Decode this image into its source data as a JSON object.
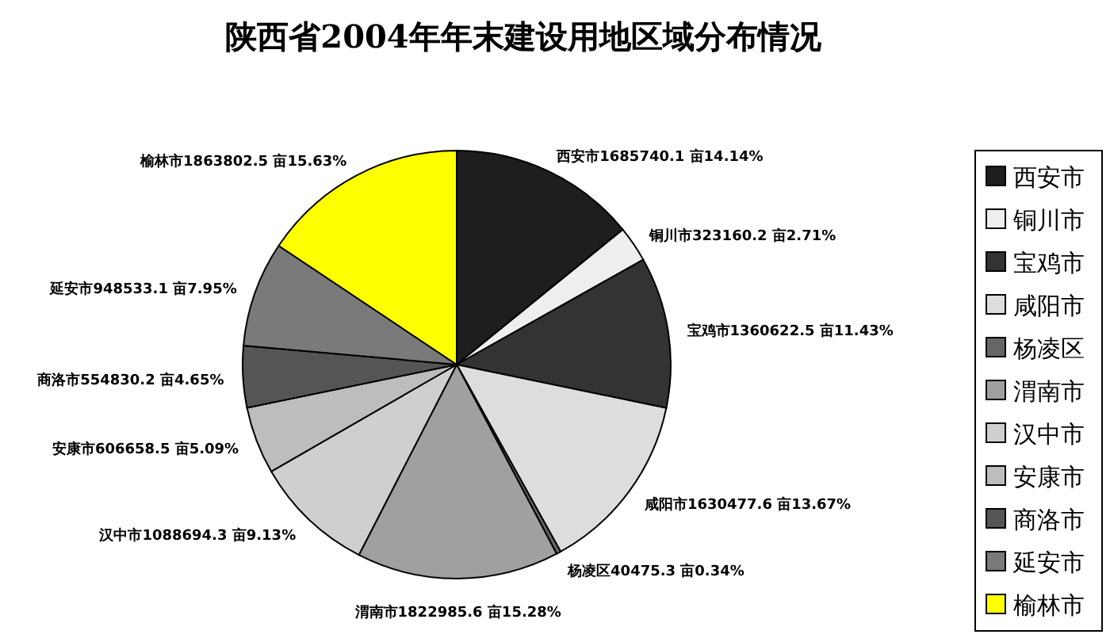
{
  "chart_data": {
    "type": "pie",
    "title": "陕西省2004年年末建设用地区域分布情况",
    "categories": [
      "西安市",
      "铜川市",
      "宝鸡市",
      "咸阳市",
      "杨凌区",
      "渭南市",
      "汉中市",
      "安康市",
      "商洛市",
      "延安市",
      "榆林市"
    ],
    "values": [
      1685740.1,
      323160.2,
      1360622.5,
      1630477.6,
      40475.3,
      1822985.6,
      1088694.3,
      606658.5,
      554830.2,
      948533.1,
      1863802.5
    ],
    "value_labels": [
      "西安市1685740.1 亩14.14%",
      "铜川市323160.2 亩2.71%",
      "宝鸡市1360622.5 亩11.43%",
      "咸阳市1630477.6 亩13.67%",
      "杨凌区40475.3 亩0.34%",
      "渭南市1822985.6 亩15.28%",
      "汉中市1088694.3 亩9.13%",
      "安康市606658.5 亩5.09%",
      "商洛市554830.2 亩4.65%",
      "延安市948533.1 亩7.95%",
      "榆林市1863802.5 亩15.63%"
    ],
    "colors": [
      "#1e1e1e",
      "#eeeeee",
      "#333333",
      "#dddddd",
      "#666666",
      "#a0a0a0",
      "#cfcfcf",
      "#bdbdbd",
      "#555555",
      "#7a7a7a",
      "#ffff00"
    ],
    "legend": "right"
  }
}
